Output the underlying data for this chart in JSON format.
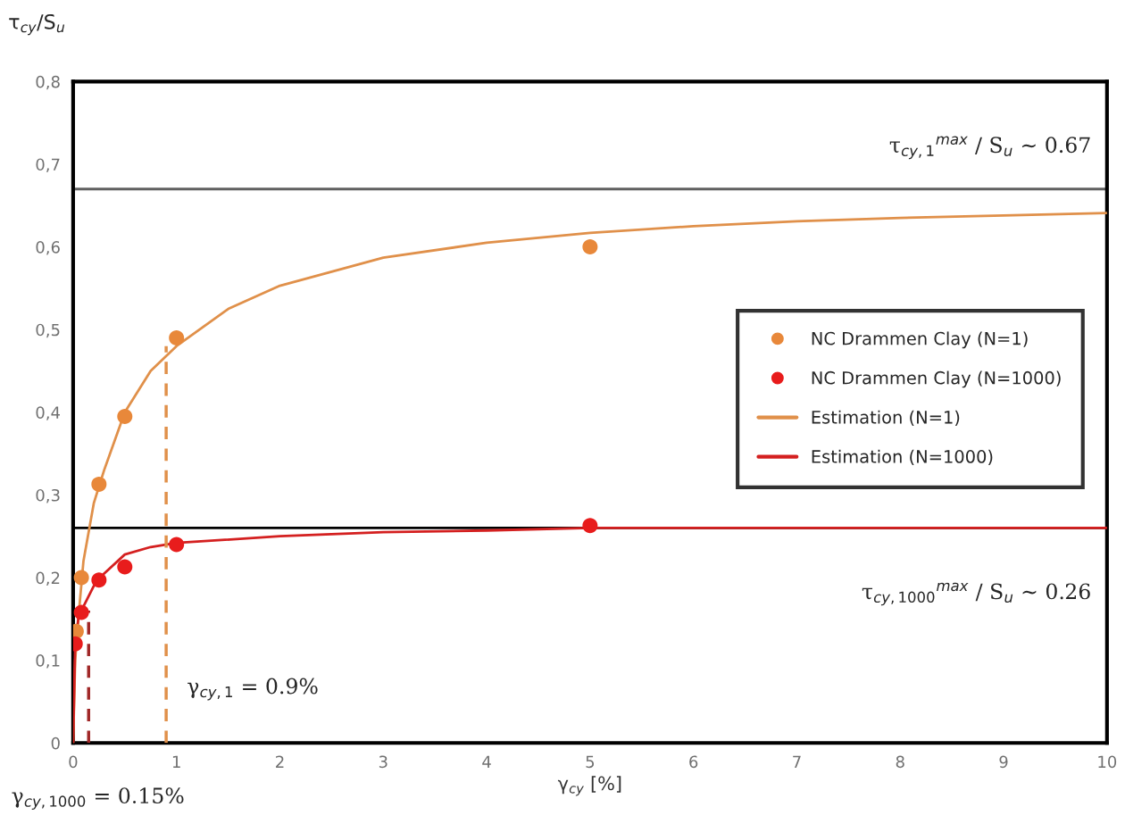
{
  "chart_data": {
    "type": "line",
    "xlabel": "γ$_{cy}$ [%]",
    "ylabel": "τ$_{cy}$/S$_{u}$",
    "xlim": [
      0,
      10
    ],
    "xticks": [
      0,
      1,
      2,
      3,
      4,
      5,
      6,
      7,
      8,
      9,
      10
    ],
    "ylim": [
      0,
      0.8
    ],
    "yticks": [
      0,
      {
        "value": 0.1,
        "label": "0,1"
      },
      {
        "value": 0.2,
        "label": "0,2"
      },
      {
        "value": 0.3,
        "label": "0,3"
      },
      {
        "value": 0.4,
        "label": "0,4"
      },
      {
        "value": 0.5,
        "label": "0,5"
      },
      {
        "value": 0.6,
        "label": "0,6"
      },
      {
        "value": 0.7,
        "label": "0,7"
      },
      {
        "value": 0.8,
        "label": "0,8"
      }
    ],
    "grid": false,
    "legend": "right",
    "series": [
      {
        "name": "NC Drammen Clay (N=1)",
        "type": "scatter",
        "marker": "circle",
        "color": "#e8883a",
        "x": [
          0.03,
          0.08,
          0.25,
          0.5,
          1,
          5
        ],
        "values": [
          0.135,
          0.2,
          0.313,
          0.395,
          0.49,
          0.6
        ]
      },
      {
        "name": "NC Drammen Clay (N=1000)",
        "type": "scatter",
        "marker": "circle",
        "color": "#e81c1c",
        "x": [
          0.02,
          0.08,
          0.25,
          0.5,
          1,
          5
        ],
        "values": [
          0.12,
          0.158,
          0.197,
          0.213,
          0.24,
          0.263
        ]
      },
      {
        "name": "Estimation (N=1)",
        "line_style": "solid",
        "color": "#e0904a",
        "x": [
          0,
          0.02,
          0.05,
          0.1,
          0.2,
          0.3,
          0.5,
          0.75,
          1,
          1.5,
          2,
          3,
          4,
          5,
          6,
          7,
          8,
          9,
          10
        ],
        "values": [
          0,
          0.1,
          0.15,
          0.22,
          0.29,
          0.33,
          0.4,
          0.45,
          0.48,
          0.525,
          0.553,
          0.587,
          0.605,
          0.617,
          0.625,
          0.631,
          0.635,
          0.638,
          0.641
        ]
      },
      {
        "name": "Estimation (N=1000)",
        "line_style": "solid",
        "color": "#d42020",
        "x": [
          0,
          0.02,
          0.05,
          0.1,
          0.2,
          0.3,
          0.5,
          0.75,
          1,
          2,
          3,
          4,
          5,
          10
        ],
        "values": [
          0,
          0.12,
          0.15,
          0.165,
          0.19,
          0.205,
          0.228,
          0.237,
          0.242,
          0.25,
          0.255,
          0.257,
          0.26,
          0.26
        ]
      },
      {
        "line_style": "dashed",
        "color": "#e0904a",
        "x": [
          0.9,
          0.9
        ],
        "values": [
          0,
          0.48
        ]
      },
      {
        "line_style": "dashed",
        "color": "#a02828",
        "x": [
          0.15,
          0.15
        ],
        "values": [
          0,
          0.16
        ]
      }
    ],
    "ref_lines": [
      {
        "axis": "y",
        "value": 0.67,
        "color": "#606060"
      },
      {
        "axis": "y",
        "value": 0.26,
        "color": "#000000"
      }
    ],
    "annotations": [
      "τ$_{cy,1}$$^{max}$ / S$_{u}$ ∼ 0.67",
      "τ$_{cy,1000}$$^{max}$ / S$_{u}$ ∼ 0.26",
      "γ$_{cy,1}$ = 0.9%",
      "γ$_{cy,1000}$ = 0.15%"
    ]
  }
}
